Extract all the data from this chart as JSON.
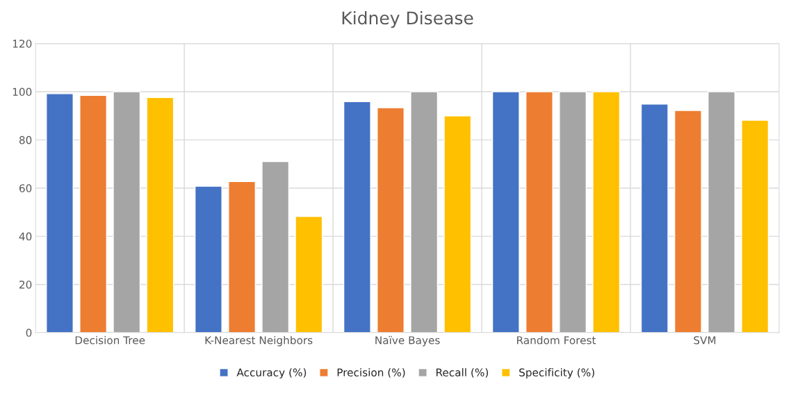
{
  "chart_data": {
    "type": "bar",
    "title": "Kidney Disease",
    "categories": [
      "Decision Tree",
      "K-Nearest Neighbors",
      "Naïve Bayes",
      "Random Forest",
      "SVM"
    ],
    "series": [
      {
        "name": "Accuracy (%)",
        "color": "#4472c4",
        "values": [
          99.2,
          60.8,
          95.9,
          100,
          94.9
        ]
      },
      {
        "name": "Precision (%)",
        "color": "#ed7d31",
        "values": [
          98.5,
          62.7,
          93.4,
          100,
          92.2
        ]
      },
      {
        "name": "Recall (%)",
        "color": "#a5a5a5",
        "values": [
          100,
          71.0,
          100,
          100,
          100
        ]
      },
      {
        "name": "Specificity (%)",
        "color": "#ffc000",
        "values": [
          97.6,
          48.2,
          90.0,
          100,
          88.2
        ]
      }
    ],
    "ylim": [
      0,
      120
    ],
    "yticks": [
      0,
      20,
      40,
      60,
      80,
      100,
      120
    ],
    "grid": true,
    "legend": "bottom"
  }
}
